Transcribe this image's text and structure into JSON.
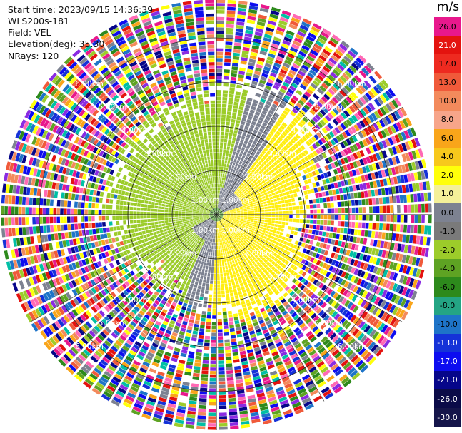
{
  "header": {
    "start_time": "Start time: 2023/09/15 14:36:39",
    "instrument": "WLS200s-181",
    "field": "Field: VEL",
    "elevation": "Elevation(deg): 35.30",
    "nrays": "NRays: 120"
  },
  "colorbar": {
    "unit": "m/s",
    "levels": [
      {
        "label": "26.0",
        "color": "#e8188c",
        "text": "#000000"
      },
      {
        "label": "21.0",
        "color": "#e4130f",
        "text": "#ffffff"
      },
      {
        "label": "17.0",
        "color": "#ee2a20",
        "text": "#000000"
      },
      {
        "label": "13.0",
        "color": "#f05a3a",
        "text": "#000000"
      },
      {
        "label": "10.0",
        "color": "#f38a5c",
        "text": "#000000"
      },
      {
        "label": "8.0",
        "color": "#f7a58a",
        "text": "#000000"
      },
      {
        "label": "6.0",
        "color": "#f9a51a",
        "text": "#000000"
      },
      {
        "label": "4.0",
        "color": "#f7c81c",
        "text": "#000000"
      },
      {
        "label": "2.0",
        "color": "#ffff0a",
        "text": "#000000"
      },
      {
        "label": "1.0",
        "color": "#f4f099",
        "text": "#000000"
      },
      {
        "label": "0.0",
        "color": "#7d8291",
        "text": "#000000"
      },
      {
        "label": "-1.0",
        "color": "#7a7a7a",
        "text": "#000000"
      },
      {
        "label": "-2.0",
        "color": "#9ccc2a",
        "text": "#000000"
      },
      {
        "label": "-4.0",
        "color": "#5ea323",
        "text": "#000000"
      },
      {
        "label": "-6.0",
        "color": "#2d8a1c",
        "text": "#000000"
      },
      {
        "label": "-8.0",
        "color": "#24a584",
        "text": "#000000"
      },
      {
        "label": "-10.0",
        "color": "#1e74c8",
        "text": "#000000"
      },
      {
        "label": "-13.0",
        "color": "#1532d8",
        "text": "#ffffff"
      },
      {
        "label": "-17.0",
        "color": "#0d0df0",
        "text": "#ffffff"
      },
      {
        "label": "-21.0",
        "color": "#06068a",
        "text": "#ffffff"
      },
      {
        "label": "-26.0",
        "color": "#0b0b48",
        "text": "#ffffff"
      },
      {
        "label": "-30.0",
        "color": "#15154a",
        "text": "#ffffff"
      }
    ]
  },
  "ppi": {
    "range_ring_labels": [
      "1.00km",
      "2.00km",
      "3.00km",
      "4.00km",
      "5.00km",
      "6.00km",
      "7.00km"
    ],
    "noise_colors": [
      "#e8188c",
      "#e4130f",
      "#f05a3a",
      "#f38a5c",
      "#f9a51a",
      "#ffff0a",
      "#7d8291",
      "#9ccc2a",
      "#5ea323",
      "#2d8a1c",
      "#1e74c8",
      "#1532d8",
      "#0d0df0",
      "#06068a",
      "#8a2be2",
      "#ffffff",
      "#ff69b4",
      "#00bfa5"
    ],
    "signal_colors": {
      "positive": "#ffee10",
      "positive_edge": "#f5f02a",
      "zero": "#7d8291",
      "negative": "#9ccc2a",
      "negative_strong": "#5ea323",
      "negative_dark": "#2d8a1c"
    }
  }
}
